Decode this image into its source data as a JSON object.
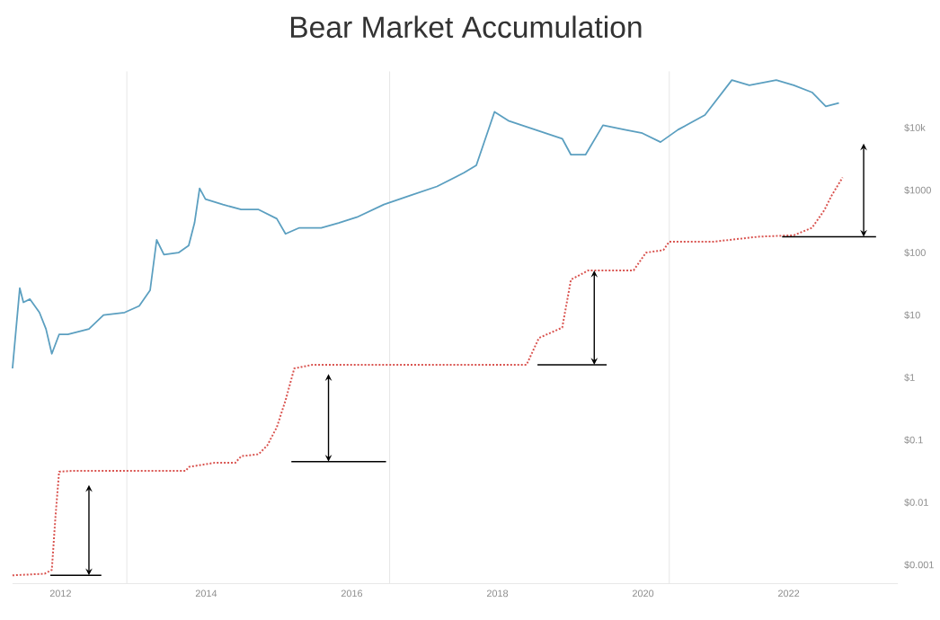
{
  "chart_data": {
    "type": "line",
    "title": "Bear Market Accumulation",
    "xlim": [
      2011.34,
      2023.5
    ],
    "xticks": [
      2012,
      2014,
      2016,
      2018,
      2020,
      2022
    ],
    "ylim": [
      0.0005,
      80000
    ],
    "log": "y",
    "yticks": [
      {
        "value": 0.001,
        "label": "$0.001"
      },
      {
        "value": 0.01,
        "label": "$0.01"
      },
      {
        "value": 0.1,
        "label": "$0.1"
      },
      {
        "value": 1,
        "label": "$1"
      },
      {
        "value": 10,
        "label": "$10"
      },
      {
        "value": 100,
        "label": "$100"
      },
      {
        "value": 1000,
        "label": "$1000"
      },
      {
        "value": 10000,
        "label": "$10k"
      }
    ],
    "grid": false,
    "marker": "none",
    "ref_lines": [
      {
        "axis": "x",
        "value": 2012.91,
        "color": "#e6e6e6"
      },
      {
        "axis": "x",
        "value": 2016.52,
        "color": "#e6e6e6"
      },
      {
        "axis": "x",
        "value": 2020.36,
        "color": "#e6e6e6"
      }
    ],
    "series": [
      {
        "color": "#5b9fc0",
        "line_style": "solid",
        "x": [
          2011.34,
          2011.44,
          2011.49,
          2011.58,
          2011.71,
          2011.8,
          2011.88,
          2011.98,
          2012.1,
          2012.39,
          2012.59,
          2012.88,
          2013.08,
          2013.23,
          2013.32,
          2013.42,
          2013.62,
          2013.76,
          2013.84,
          2013.91,
          2013.99,
          2014.23,
          2014.48,
          2014.72,
          2014.97,
          2015.09,
          2015.28,
          2015.58,
          2015.82,
          2016.07,
          2016.44,
          2016.8,
          2017.17,
          2017.54,
          2017.71,
          2017.96,
          2018.15,
          2018.52,
          2018.89,
          2019.01,
          2019.21,
          2019.45,
          2019.75,
          2019.99,
          2020.24,
          2020.48,
          2020.85,
          2021.22,
          2021.46,
          2021.83,
          2022.07,
          2022.32,
          2022.51,
          2022.69
        ],
        "values": [
          1.4,
          27,
          16,
          18,
          11,
          6,
          2.4,
          4.9,
          4.9,
          6,
          10,
          11,
          14,
          25,
          160,
          93,
          100,
          130,
          300,
          1070,
          720,
          590,
          490,
          490,
          350,
          200,
          250,
          250,
          300,
          370,
          590,
          820,
          1150,
          1900,
          2500,
          18000,
          13000,
          9300,
          6700,
          3700,
          3700,
          11000,
          9300,
          8200,
          5900,
          9300,
          16000,
          58000,
          48000,
          58000,
          48000,
          37000,
          22000,
          25000
        ]
      },
      {
        "color": "#d9534f",
        "line_style": "dotted",
        "x": [
          2011.34,
          2011.78,
          2011.88,
          2011.93,
          2011.98,
          2012.15,
          2012.88,
          2013.72,
          2013.76,
          2014.11,
          2014.4,
          2014.48,
          2014.72,
          2014.84,
          2014.97,
          2015.09,
          2015.21,
          2015.46,
          2016.07,
          2017.29,
          2018.4,
          2018.57,
          2018.89,
          2019.01,
          2019.25,
          2019.87,
          2020.04,
          2020.28,
          2020.36,
          2020.97,
          2021.58,
          2022.07,
          2022.32,
          2022.49,
          2022.59,
          2022.74
        ],
        "values": [
          0.00068,
          0.00072,
          0.00083,
          0.0059,
          0.031,
          0.032,
          0.032,
          0.032,
          0.037,
          0.043,
          0.043,
          0.055,
          0.059,
          0.082,
          0.16,
          0.43,
          1.4,
          1.6,
          1.6,
          1.6,
          1.6,
          4.3,
          6.3,
          37,
          52,
          52,
          100,
          110,
          150,
          150,
          180,
          190,
          250,
          480,
          820,
          1600
        ]
      }
    ]
  }
}
